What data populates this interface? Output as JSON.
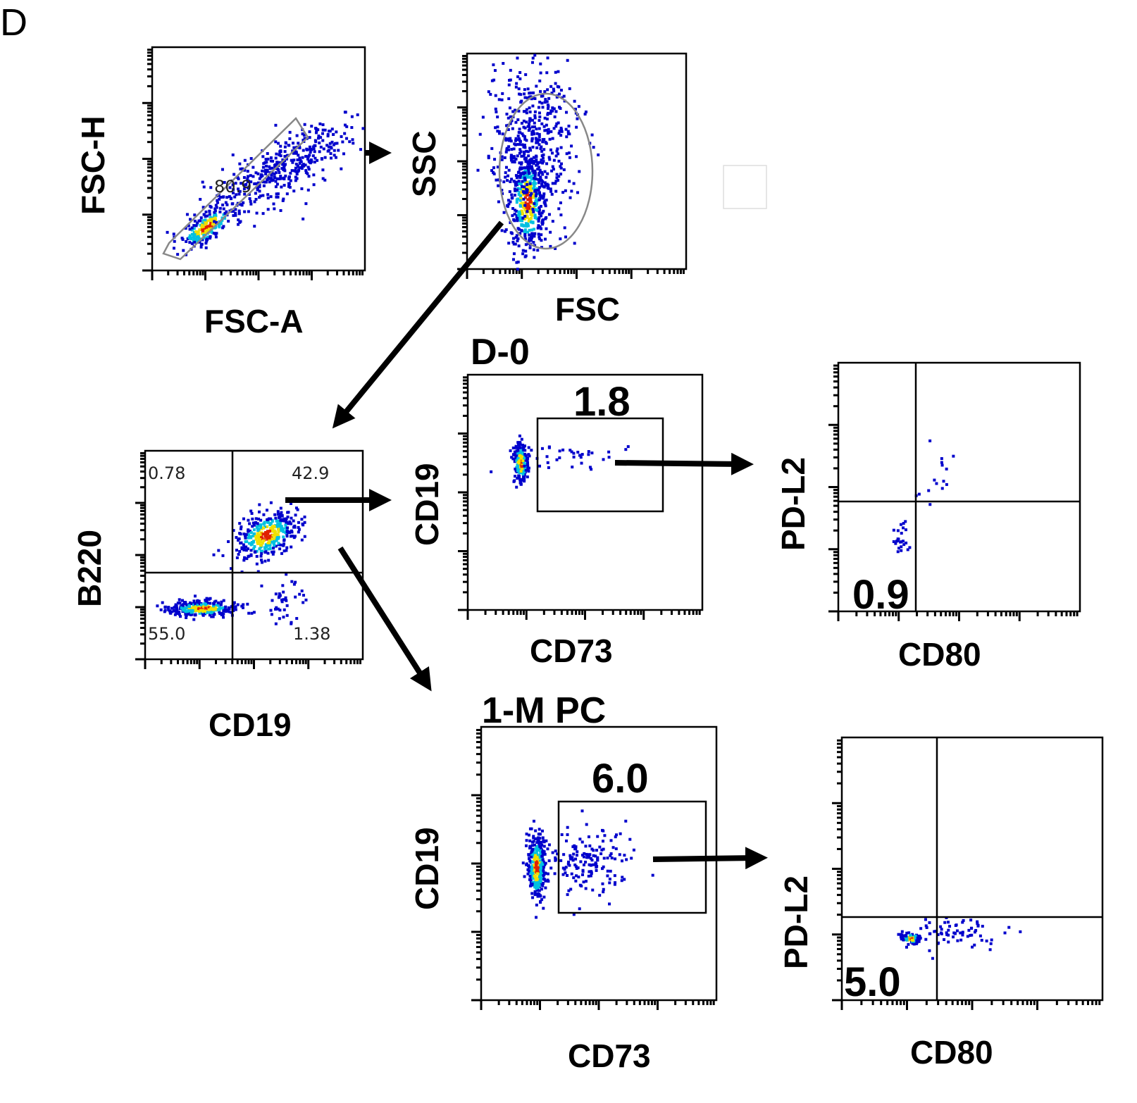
{
  "panel_label": "D",
  "colors": {
    "low": "#0000cc",
    "mid": "#00c0e0",
    "high": "#f0e000",
    "peak": "#e02000",
    "gate": "#888888"
  },
  "chart_data": [
    {
      "id": "p1",
      "type": "scatter",
      "xlabel": "FSC-A",
      "ylabel": "FSC-H",
      "gate": "polygon",
      "gate_labels": [
        "80.9"
      ],
      "clusters": [
        {
          "cx": 25,
          "cy": 20,
          "sx": 8,
          "sy": 3,
          "rot": 35,
          "n": 220,
          "core": true
        },
        {
          "cx": 62,
          "cy": 47,
          "sx": 20,
          "sy": 6,
          "rot": 30,
          "n": 420,
          "core": false
        }
      ]
    },
    {
      "id": "p2",
      "type": "scatter",
      "xlabel": "FSC",
      "ylabel": "SSC",
      "gate": "oval",
      "gate_labels": [],
      "clusters": [
        {
          "cx": 27,
          "cy": 32,
          "sx": 4,
          "sy": 12,
          "rot": 0,
          "n": 400,
          "core": true
        },
        {
          "cx": 30,
          "cy": 60,
          "sx": 10,
          "sy": 22,
          "rot": 0,
          "n": 500,
          "core": false
        }
      ]
    },
    {
      "id": "p3",
      "type": "scatter",
      "xlabel": "CD19",
      "ylabel": "B220",
      "gate": "quadrant",
      "gate_labels": [
        "0.78",
        "42.9",
        "55.0",
        "1.38"
      ],
      "clusters": [
        {
          "cx": 26,
          "cy": 25,
          "sx": 8,
          "sy": 1.8,
          "rot": 0,
          "n": 300,
          "core": true
        },
        {
          "cx": 55,
          "cy": 60,
          "sx": 8,
          "sy": 5,
          "rot": 30,
          "n": 350,
          "core": true
        },
        {
          "cx": 62,
          "cy": 28,
          "sx": 5,
          "sy": 6,
          "rot": 0,
          "n": 40,
          "core": false
        }
      ]
    },
    {
      "id": "p4",
      "type": "scatter",
      "title": "D-0",
      "xlabel": "CD73",
      "ylabel": "CD19",
      "gate": "rectangle",
      "gate_labels": [
        "1.8"
      ],
      "clusters": [
        {
          "cx": 22,
          "cy": 63,
          "sx": 1.5,
          "sy": 4.5,
          "rot": 0,
          "n": 220,
          "core": true
        },
        {
          "cx": 45,
          "cy": 65,
          "sx": 12,
          "sy": 3,
          "rot": 0,
          "n": 35,
          "core": false
        }
      ]
    },
    {
      "id": "p5",
      "type": "scatter",
      "xlabel": "CD80",
      "ylabel": "PD-L2",
      "gate": "quadrant",
      "gate_labels": [
        "0.9"
      ],
      "clusters": [
        {
          "cx": 25,
          "cy": 30,
          "sx": 1.5,
          "sy": 4,
          "rot": 0,
          "n": 25,
          "core": false
        },
        {
          "cx": 40,
          "cy": 55,
          "sx": 4,
          "sy": 8,
          "rot": 0,
          "n": 15,
          "core": false
        }
      ]
    },
    {
      "id": "p6",
      "type": "scatter",
      "title": "1-M PC",
      "xlabel": "CD73",
      "ylabel": "CD19",
      "gate": "rectangle",
      "gate_labels": [
        "6.0"
      ],
      "clusters": [
        {
          "cx": 23,
          "cy": 49,
          "sx": 2,
          "sy": 6,
          "rot": 0,
          "n": 320,
          "core": true
        },
        {
          "cx": 45,
          "cy": 52,
          "sx": 8,
          "sy": 6,
          "rot": 0,
          "n": 160,
          "core": false
        }
      ]
    },
    {
      "id": "p7",
      "type": "scatter",
      "xlabel": "CD80",
      "ylabel": "PD-L2",
      "gate": "quadrant",
      "gate_labels": [
        "5.0"
      ],
      "clusters": [
        {
          "cx": 26,
          "cy": 24,
          "sx": 2,
          "sy": 1,
          "rot": 0,
          "n": 80,
          "core": true
        },
        {
          "cx": 42,
          "cy": 27,
          "sx": 9,
          "sy": 3,
          "rot": 0,
          "n": 70,
          "core": false
        }
      ]
    }
  ]
}
